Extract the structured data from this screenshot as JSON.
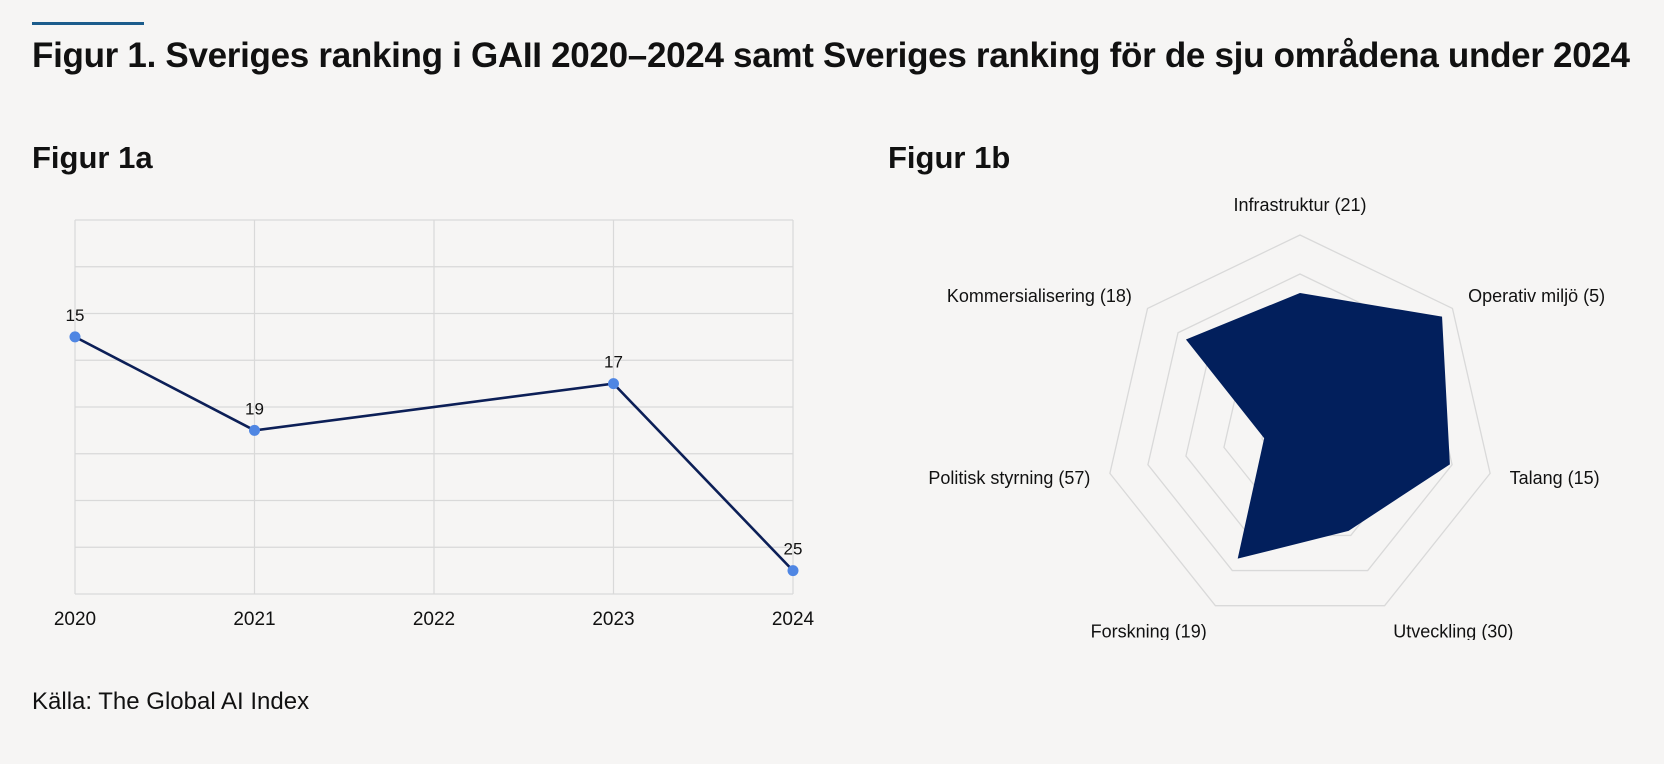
{
  "title": "Figur 1. Sveriges ranking i GAII 2020–2024 samt Sveriges ranking för de sju områdena under 2024",
  "fig1a_title": "Figur 1a",
  "fig1b_title": "Figur 1b",
  "source": "Källa: The Global AI Index",
  "colors": {
    "line": "#0c1f57",
    "point": "#4f86e3",
    "radar_fill": "#021f5c",
    "grid": "#d9d9d9",
    "accent": "#1b5c8c"
  },
  "chart_data": [
    {
      "type": "line",
      "x": [
        "2020",
        "2021",
        "2022",
        "2023",
        "2024"
      ],
      "series": [
        {
          "values": [
            15,
            19,
            null,
            17,
            25
          ],
          "data_labels": [
            "15",
            "19",
            "",
            "17",
            "25"
          ]
        }
      ],
      "ylim": [
        10,
        26
      ],
      "y_inverted": true,
      "grid": true,
      "legend": false
    },
    {
      "type": "radar",
      "axes": [
        {
          "name": "Infrastruktur",
          "label": "Infrastruktur  (21)",
          "value": 21
        },
        {
          "name": "Operativ miljö",
          "label": "Operativ miljö (5)",
          "value": 5
        },
        {
          "name": "Talang",
          "label": "Talang (15)",
          "value": 15
        },
        {
          "name": "Utveckling",
          "label": "Utveckling (30)",
          "value": 30
        },
        {
          "name": "Forskning",
          "label": "Forskning (19)",
          "value": 19
        },
        {
          "name": "Politisk styrning",
          "label": "Politisk styrning (57)",
          "value": 57
        },
        {
          "name": "Kommersialisering",
          "label": "Kommersialisering (18)",
          "value": 18
        }
      ],
      "scale": "rank, outer edge = best",
      "rank_range": [
        0,
        70
      ],
      "grid": true,
      "legend": false
    }
  ]
}
